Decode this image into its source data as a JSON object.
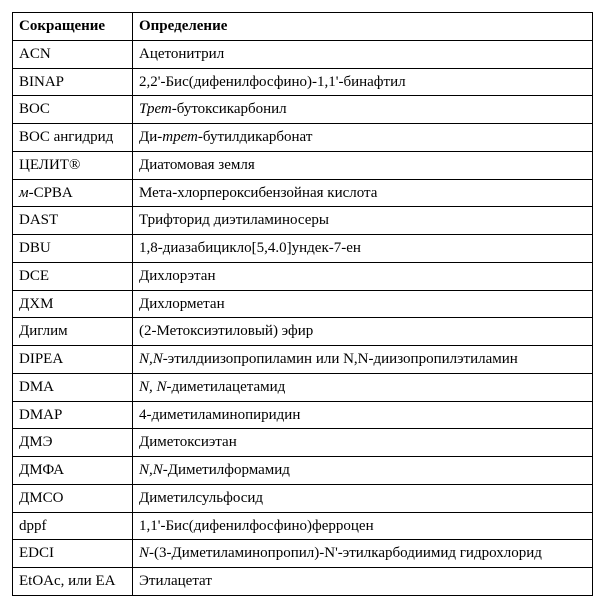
{
  "table": {
    "header": {
      "abbr": "Сокращение",
      "def": "Определение"
    },
    "rows": [
      {
        "abbr": "ACN",
        "def": "Ацетонитрил"
      },
      {
        "abbr": "BINAP",
        "def": "2,2'-Бис(дифенилфосфино)-1,1'-бинафтил"
      },
      {
        "abbr": "BOC",
        "def_pre": "Трет",
        "def_post": "-бутоксикарбонил"
      },
      {
        "abbr": "BOC ангидрид",
        "def_pre_plain": "Ди-",
        "def_pre": "трет",
        "def_post": "-бутилдикарбонат"
      },
      {
        "abbr": "ЦЕЛИТ®",
        "def": "Диатомовая земля"
      },
      {
        "abbr_pre": "м",
        "abbr_post": "-CPBA",
        "def": "Мета-хлорпероксибензойная кислота"
      },
      {
        "abbr": "DAST",
        "def": "Трифторид диэтиламиносеры"
      },
      {
        "abbr": "DBU",
        "def": "1,8-диазабицикло[5,4.0]ундек-7-ен"
      },
      {
        "abbr": "DCE",
        "def": "Дихлорэтан"
      },
      {
        "abbr": "ДХМ",
        "def": "Дихлорметан"
      },
      {
        "abbr": "Диглим",
        "def": "(2-Метоксиэтиловый) эфир"
      },
      {
        "abbr": "DIPEA",
        "def_pre": "N,N",
        "def_post": "-этилдиизопропиламин или N,N-диизопропилэтиламин"
      },
      {
        "abbr": "DMA",
        "def_pre": "N, N",
        "def_post": "-диметилацетамид"
      },
      {
        "abbr": "DMAP",
        "def": "4-диметиламинопиридин"
      },
      {
        "abbr": "ДМЭ",
        "def": "Диметоксиэтан"
      },
      {
        "abbr": "ДМФА",
        "def_pre": "N,N",
        "def_post": "-Диметилформамид"
      },
      {
        "abbr": "ДМСО",
        "def": "Диметилсульфосид"
      },
      {
        "abbr": "dppf",
        "def": "1,1'-Бис(дифенилфосфино)ферроцен"
      },
      {
        "abbr": "EDCI",
        "def_pre": "N",
        "def_post": "-(3-Диметиламинопропил)-N'-этилкарбодиимид гидрохлорид"
      },
      {
        "abbr": "EtOAc, или EA",
        "def": "Этилацетат"
      }
    ]
  }
}
